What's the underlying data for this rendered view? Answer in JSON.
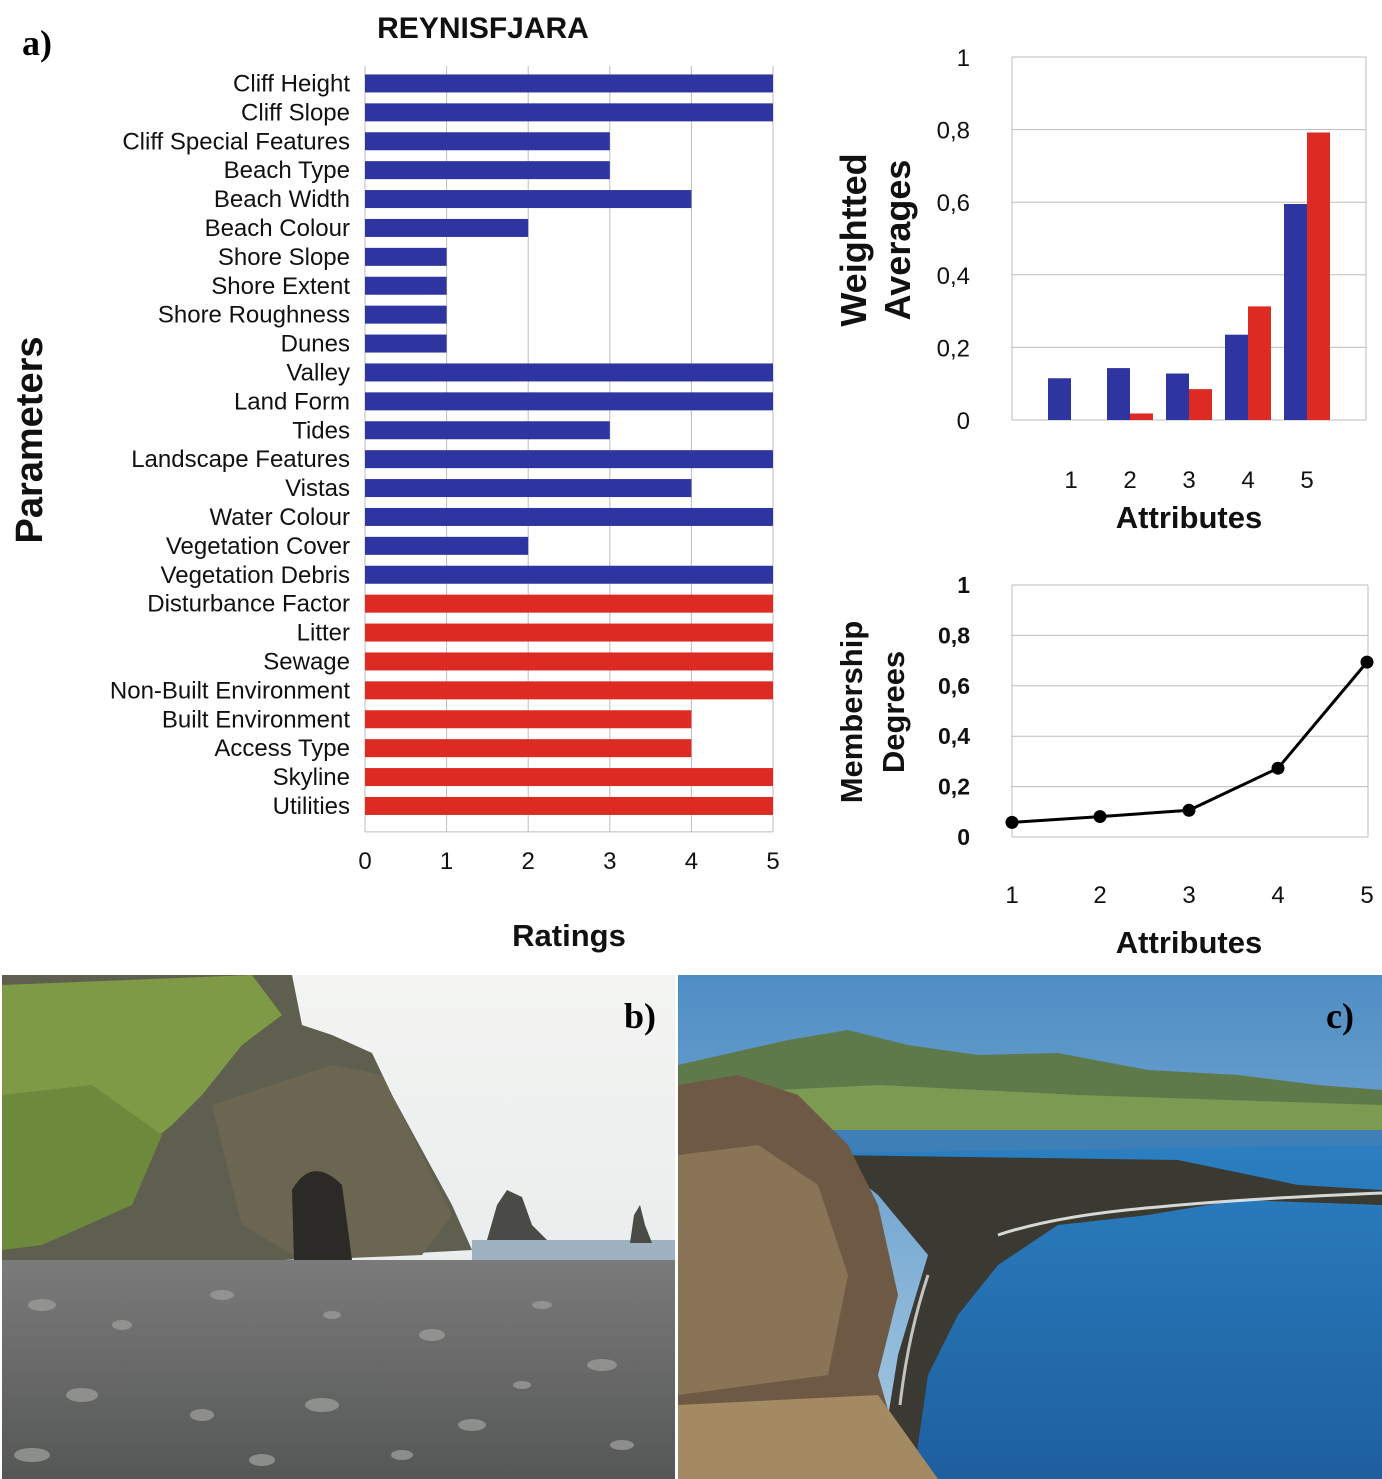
{
  "panels": {
    "a": "a)",
    "b": "b)",
    "c": "c)"
  },
  "colors": {
    "physical": "#2e35a0",
    "human": "#dd2a22",
    "line": "#000000",
    "grid": "#bdbdbd"
  },
  "chart_data": [
    {
      "type": "bar",
      "orientation": "horizontal",
      "title": "REYNISFJARA",
      "xlabel": "Ratings",
      "ylabel": "Parameters",
      "xlim": [
        0,
        5
      ],
      "xticks": [
        "0",
        "1",
        "2",
        "3",
        "4",
        "5"
      ],
      "grid": true,
      "categories": [
        "Cliff Height",
        "Cliff Slope",
        "Cliff Special Features",
        "Beach Type",
        "Beach Width",
        "Beach Colour",
        "Shore Slope",
        "Shore Extent",
        "Shore Roughness",
        "Dunes",
        "Valley",
        "Land Form",
        "Tides",
        "Landscape Features",
        "Vistas",
        "Water Colour",
        "Vegetation Cover",
        "Vegetation Debris",
        "Disturbance Factor",
        "Litter",
        "Sewage",
        "Non-Built Environment",
        "Built Environment",
        "Access Type",
        "Skyline",
        "Utilities"
      ],
      "values": [
        5,
        5,
        3,
        3,
        4,
        2,
        1,
        1,
        1,
        1,
        5,
        5,
        3,
        5,
        4,
        5,
        2,
        5,
        5,
        5,
        5,
        5,
        4,
        4,
        5,
        5
      ],
      "bar_colors": [
        "physical",
        "physical",
        "physical",
        "physical",
        "physical",
        "physical",
        "physical",
        "physical",
        "physical",
        "physical",
        "physical",
        "physical",
        "physical",
        "physical",
        "physical",
        "physical",
        "physical",
        "physical",
        "human",
        "human",
        "human",
        "human",
        "human",
        "human",
        "human",
        "human"
      ]
    },
    {
      "type": "bar",
      "xlabel": "Attributes",
      "ylabel_lines": [
        "Weightted",
        "Averages"
      ],
      "categories": [
        "1",
        "2",
        "3",
        "4",
        "5"
      ],
      "ylim": [
        0,
        1
      ],
      "yticks": [
        "0",
        "0,2",
        "0,4",
        "0,6",
        "0,8",
        "1"
      ],
      "grid": true,
      "series": [
        {
          "color": "physical",
          "values": [
            0.115,
            0.143,
            0.128,
            0.235,
            0.595
          ]
        },
        {
          "color": "human",
          "values": [
            0,
            0.018,
            0.085,
            0.313,
            0.792
          ]
        }
      ]
    },
    {
      "type": "line",
      "xlabel": "Attributes",
      "ylabel_lines": [
        "Membership",
        "Degrees"
      ],
      "x": [
        "1",
        "2",
        "3",
        "4",
        "5"
      ],
      "ylim": [
        0,
        1
      ],
      "yticks": [
        "0",
        "0,2",
        "0,4",
        "0,6",
        "0,8",
        "1"
      ],
      "grid": true,
      "values": [
        0.058,
        0.081,
        0.106,
        0.273,
        0.694
      ]
    }
  ]
}
